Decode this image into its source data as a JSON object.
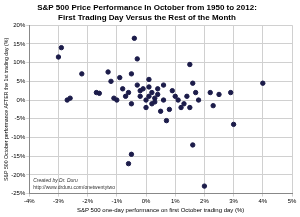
{
  "chart_data": {
    "type": "scatter",
    "title": [
      "S&P 500 Price Performance In October from 1950 to 2012:",
      "First Trading Day Versus the Rest of the Month"
    ],
    "x_label": "S&P 500 one-day performance on first October trading day (%)",
    "y_label": "S&P 500 October performance AFTER the 1st trading day (%)",
    "annotations": [
      "Created by Dr. Duru",
      "http://www.drduru.com/onetwentytwo"
    ],
    "x": [
      -3.0,
      -2.9,
      -2.7,
      -2.6,
      -2.2,
      -1.7,
      -1.6,
      -1.3,
      -1.2,
      -1.1,
      -1.0,
      -0.9,
      -0.8,
      -0.7,
      -0.6,
      -0.5,
      -0.5,
      -0.4,
      -0.3,
      -0.3,
      -0.2,
      -0.2,
      -0.1,
      0.0,
      0.0,
      0.1,
      0.1,
      0.1,
      0.2,
      0.2,
      0.3,
      0.3,
      0.4,
      0.4,
      0.5,
      0.6,
      0.6,
      0.7,
      0.8,
      0.9,
      1.0,
      1.1,
      1.2,
      1.3,
      1.4,
      1.5,
      1.5,
      1.6,
      1.7,
      1.8,
      2.0,
      2.2,
      2.3,
      2.5,
      2.9,
      3.0,
      4.0,
      -0.5,
      -0.6,
      1.6
    ],
    "values": [
      11.5,
      14,
      0,
      0.5,
      7,
      2,
      1.8,
      7.5,
      5,
      0.5,
      0,
      6,
      3,
      1,
      2,
      7,
      -1,
      16.5,
      11,
      4,
      1,
      2.5,
      3,
      0,
      -2,
      1,
      3.5,
      5.5,
      -1,
      2,
      0.5,
      -0.5,
      3,
      1.5,
      -3,
      0,
      4,
      -5.5,
      -2.5,
      2.5,
      1,
      0,
      -2,
      -1,
      1,
      9.5,
      -2,
      4.5,
      2,
      0,
      -23,
      2,
      -1.5,
      1.5,
      2,
      -6.5,
      4.5,
      -14.5,
      -17,
      -12
    ],
    "color": "#1c1c4a",
    "marker": "circle",
    "xlim": [
      -4,
      5
    ],
    "xticks": [
      {
        "value": -4,
        "label": "-4%"
      },
      {
        "value": -3,
        "label": "-3%"
      },
      {
        "value": -2,
        "label": "-2%"
      },
      {
        "value": -1,
        "label": "-1%"
      },
      {
        "value": 0,
        "label": "0%"
      },
      {
        "value": 1,
        "label": "1%"
      },
      {
        "value": 2,
        "label": "2%"
      },
      {
        "value": 3,
        "label": "3%"
      },
      {
        "value": 4,
        "label": "4%"
      },
      {
        "value": 5,
        "label": "5%"
      }
    ],
    "ylim": [
      -25,
      20
    ],
    "yticks": [
      {
        "value": -25,
        "label": "-25%"
      },
      {
        "value": -20,
        "label": "-20%"
      },
      {
        "value": -15,
        "label": "-15%"
      },
      {
        "value": -10,
        "label": "-10%"
      },
      {
        "value": -5,
        "label": "-5%"
      },
      {
        "value": 0,
        "label": "0%"
      },
      {
        "value": 5,
        "label": "5%"
      },
      {
        "value": 10,
        "label": "10%"
      },
      {
        "value": 15,
        "label": "15%"
      },
      {
        "value": 20,
        "label": "20%"
      }
    ],
    "grid": true
  }
}
